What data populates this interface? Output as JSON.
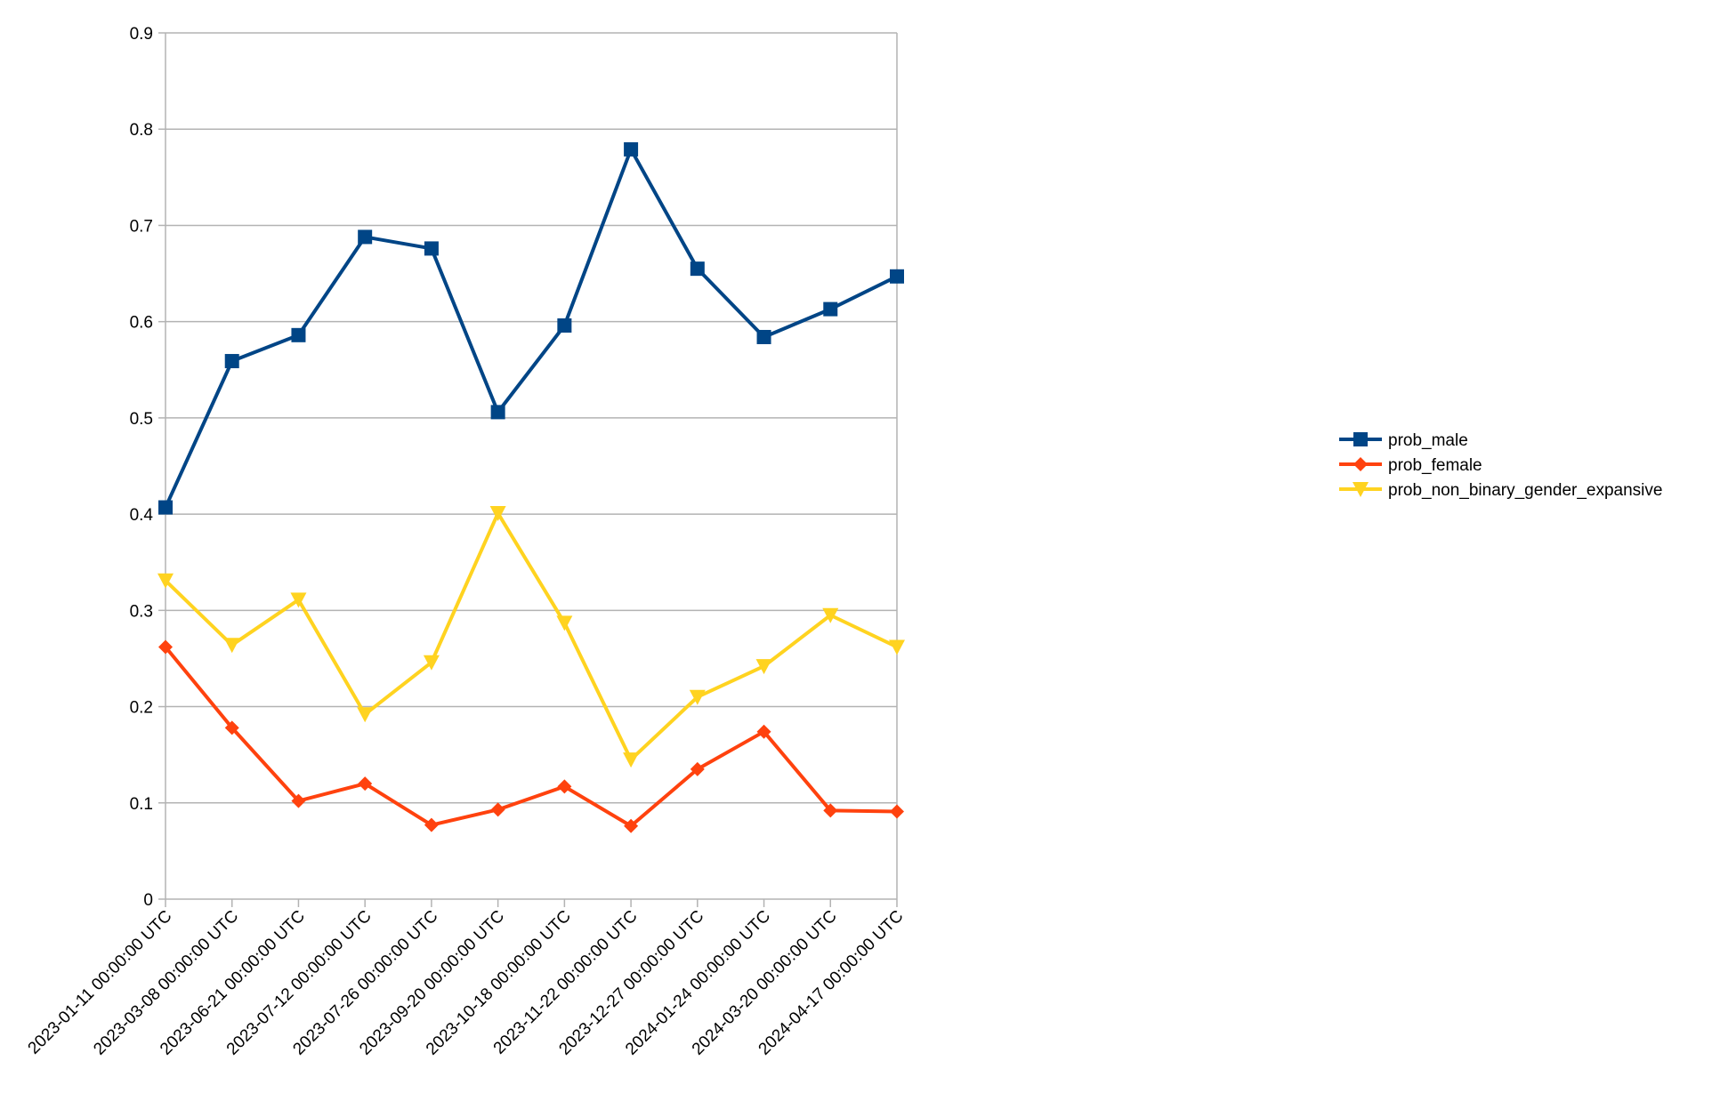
{
  "chart_data": {
    "type": "line",
    "title": "",
    "xlabel": "",
    "ylabel": "",
    "ylim": [
      0,
      0.9
    ],
    "yticks": [
      "0",
      "0.1",
      "0.2",
      "0.3",
      "0.4",
      "0.5",
      "0.6",
      "0.7",
      "0.8",
      "0.9"
    ],
    "grid": "horizontal",
    "legend_position": "right",
    "categories": [
      "2023-01-11 00:00:00 UTC",
      "2023-03-08 00:00:00 UTC",
      "2023-06-21 00:00:00 UTC",
      "2023-07-12 00:00:00 UTC",
      "2023-07-26 00:00:00 UTC",
      "2023-09-20 00:00:00 UTC",
      "2023-10-18 00:00:00 UTC",
      "2023-11-22 00:00:00 UTC",
      "2023-12-27 00:00:00 UTC",
      "2024-01-24 00:00:00 UTC",
      "2024-03-20 00:00:00 UTC",
      "2024-04-17 00:00:00 UTC"
    ],
    "series": [
      {
        "name": "prob_male",
        "color": "#004586",
        "marker": "square",
        "values": [
          0.407,
          0.559,
          0.586,
          0.688,
          0.676,
          0.506,
          0.596,
          0.779,
          0.655,
          0.584,
          0.613,
          0.647
        ]
      },
      {
        "name": "prob_female",
        "color": "#ff420e",
        "marker": "diamond",
        "values": [
          0.262,
          0.178,
          0.102,
          0.12,
          0.077,
          0.093,
          0.117,
          0.076,
          0.135,
          0.174,
          0.092,
          0.091
        ]
      },
      {
        "name": "prob_non_binary_gender_expansive",
        "color": "#ffd320",
        "marker": "triangle-down",
        "values": [
          0.331,
          0.264,
          0.311,
          0.192,
          0.246,
          0.401,
          0.287,
          0.145,
          0.21,
          0.242,
          0.295,
          0.262
        ]
      }
    ]
  }
}
